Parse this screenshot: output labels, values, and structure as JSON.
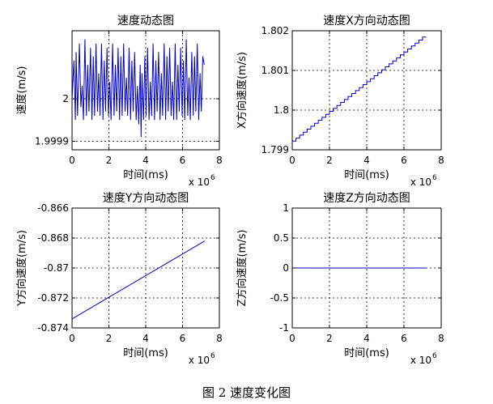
{
  "caption": "图 2 速度变化图",
  "chart_data": [
    {
      "type": "line",
      "title": "速度动态图",
      "xlabel": "时间(ms)",
      "ylabel": "速度(m/s)",
      "x_exponent": "x 10",
      "x_exponent_power": "6",
      "xlim": [
        0,
        8
      ],
      "ylim": [
        1.99988,
        2.00016
      ],
      "xticks": [
        0,
        2,
        4,
        6,
        8
      ],
      "xtick_labels": [
        "0",
        "2",
        "4",
        "6",
        "8"
      ],
      "yticks": [
        1.9999,
        2.0
      ],
      "ytick_labels": [
        "1.9999",
        "2"
      ],
      "grid": true,
      "color": "#0000cc",
      "series": [
        {
          "x": [
            0.0,
            0.1,
            0.18,
            0.22,
            0.3,
            0.4,
            0.48,
            0.55,
            0.62,
            0.7,
            0.78,
            0.85,
            0.92,
            1.0,
            1.08,
            1.15,
            1.22,
            1.3,
            1.38,
            1.45,
            1.52,
            1.6,
            1.68,
            1.75,
            1.82,
            1.9,
            1.98,
            2.05,
            2.12,
            2.2,
            2.28,
            2.35,
            2.42,
            2.5,
            2.58,
            2.65,
            2.72,
            2.8,
            2.88,
            2.95,
            3.02,
            3.1,
            3.18,
            3.25,
            3.32,
            3.4,
            3.48,
            3.55,
            3.62,
            3.7,
            3.75,
            3.8,
            3.88,
            3.95,
            4.02,
            4.1,
            4.18,
            4.25,
            4.32,
            4.4,
            4.48,
            4.55,
            4.62,
            4.7,
            4.78,
            4.85,
            4.92,
            5.0,
            5.08,
            5.15,
            5.22,
            5.3,
            5.38,
            5.45,
            5.52,
            5.6,
            5.68,
            5.75,
            5.82,
            5.9,
            5.98,
            6.05,
            6.12,
            6.2,
            6.28,
            6.35,
            6.42,
            6.5,
            6.58,
            6.65,
            6.72,
            6.8,
            6.88,
            6.95,
            7.02,
            7.1,
            7.18
          ],
          "y": [
            2.0,
            2.00009,
            1.99995,
            2.00011,
            1.99996,
            2.00013,
            1.99998,
            2.00003,
            1.99995,
            2.00014,
            1.99996,
            2.00008,
            1.99997,
            2.00012,
            1.99995,
            2.0001,
            1.99996,
            2.00013,
            1.99997,
            2.00006,
            1.99996,
            2.00013,
            1.99995,
            2.00009,
            1.99997,
            2.00012,
            1.99996,
            2.00004,
            1.99995,
            2.00013,
            1.99996,
            2.00008,
            1.99997,
            2.00012,
            1.99995,
            2.0001,
            1.99996,
            2.00013,
            1.99997,
            2.00005,
            1.99996,
            2.00012,
            1.99995,
            2.00009,
            1.99997,
            2.00011,
            1.99995,
            2.00003,
            1.99994,
            2.00008,
            1.99991,
            2.00006,
            1.99995,
            2.0001,
            1.99996,
            2.00012,
            1.99995,
            2.00004,
            1.99996,
            2.00013,
            1.99995,
            2.00009,
            1.99997,
            2.00011,
            1.99995,
            2.00006,
            1.99996,
            2.00013,
            1.99995,
            2.0001,
            1.99997,
            2.00012,
            1.99996,
            2.00004,
            1.99995,
            2.00013,
            1.99995,
            2.00008,
            1.99997,
            2.00012,
            1.99996,
            2.00009,
            1.99995,
            2.00014,
            1.99996,
            2.00005,
            1.99995,
            2.00011,
            1.99996,
            2.0001,
            1.99997,
            2.00013,
            1.99995,
            2.00006,
            1.99997,
            2.0001,
            2.00008
          ]
        }
      ]
    },
    {
      "type": "line",
      "title": "速度X方向动态图",
      "xlabel": "时间(ms)",
      "ylabel": "X方向速度(m/s)",
      "x_exponent": "x 10",
      "x_exponent_power": "6",
      "xlim": [
        0,
        8
      ],
      "ylim": [
        1.799,
        1.802
      ],
      "xticks": [
        0,
        2,
        4,
        6,
        8
      ],
      "xtick_labels": [
        "0",
        "2",
        "4",
        "6",
        "8"
      ],
      "yticks": [
        1.799,
        1.8,
        1.801,
        1.802
      ],
      "ytick_labels": [
        "1.799",
        "1.8",
        "1.801",
        "1.802"
      ],
      "grid": true,
      "color": "#0000cc",
      "series": [
        {
          "x": [
            0.0,
            7.2
          ],
          "y": [
            1.79922,
            1.80184
          ],
          "steps": 36
        }
      ]
    },
    {
      "type": "line",
      "title": "速度Y方向动态图",
      "xlabel": "时间(ms)",
      "ylabel": "Y方向速度(m/s)",
      "x_exponent": "x 10",
      "x_exponent_power": "6",
      "xlim": [
        0,
        8
      ],
      "ylim": [
        -0.874,
        -0.866
      ],
      "xticks": [
        0,
        2,
        4,
        6,
        8
      ],
      "xtick_labels": [
        "0",
        "2",
        "4",
        "6",
        "8"
      ],
      "yticks": [
        -0.874,
        -0.872,
        -0.87,
        -0.868,
        -0.866
      ],
      "ytick_labels": [
        "-0.874",
        "-0.872",
        "-0.87",
        "-0.868",
        "-0.866"
      ],
      "grid": true,
      "color": "#0000cc",
      "series": [
        {
          "x": [
            0.0,
            7.2
          ],
          "y": [
            -0.8734,
            -0.8682
          ],
          "steps": 0
        }
      ]
    },
    {
      "type": "line",
      "title": "速度Z方向动态图",
      "xlabel": "时间(ms)",
      "ylabel": "Z方向速度(m/s)",
      "x_exponent": "x 10",
      "x_exponent_power": "6",
      "xlim": [
        0,
        8
      ],
      "ylim": [
        -1,
        1
      ],
      "xticks": [
        0,
        2,
        4,
        6,
        8
      ],
      "xtick_labels": [
        "0",
        "2",
        "4",
        "6",
        "8"
      ],
      "yticks": [
        -1,
        -0.5,
        0,
        0.5,
        1
      ],
      "ytick_labels": [
        "-1",
        "-0.5",
        "0",
        "0.5",
        "1"
      ],
      "grid": true,
      "color": "#0000cc",
      "series": [
        {
          "x": [
            0.0,
            7.2
          ],
          "y": [
            0,
            0
          ],
          "steps": 0
        }
      ]
    }
  ]
}
